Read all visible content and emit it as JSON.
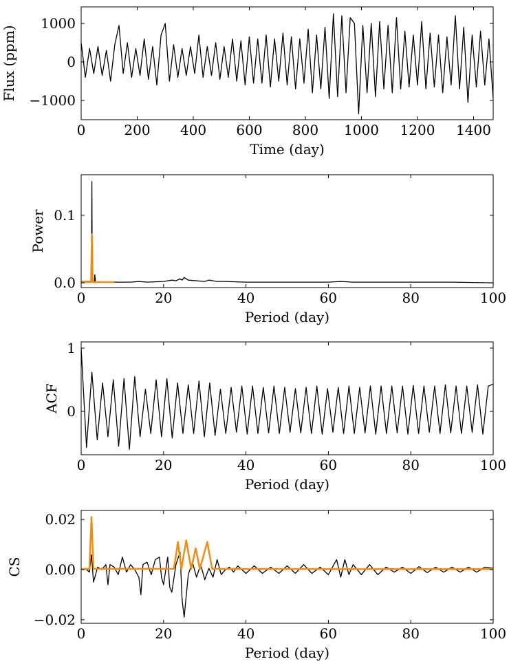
{
  "chart_data": [
    {
      "type": "line",
      "xlabel": "Time (day)",
      "ylabel": "Flux (ppm)",
      "xlim": [
        0,
        1470
      ],
      "ylim": [
        -1500,
        1430
      ],
      "xticks": [
        0,
        200,
        400,
        600,
        800,
        1000,
        1200,
        1400
      ],
      "yticks": [
        {
          "value": -1000,
          "label": "−1000"
        },
        0,
        1000
      ],
      "series": [
        {
          "color": "#000000",
          "x": [
            0,
            15,
            30,
            45,
            60,
            75,
            90,
            105,
            120,
            135,
            150,
            165,
            180,
            195,
            210,
            225,
            240,
            255,
            270,
            285,
            300,
            315,
            330,
            345,
            360,
            375,
            390,
            405,
            420,
            435,
            450,
            465,
            480,
            495,
            510,
            525,
            540,
            555,
            570,
            585,
            600,
            615,
            630,
            645,
            660,
            675,
            690,
            705,
            720,
            735,
            750,
            765,
            780,
            795,
            810,
            825,
            840,
            855,
            870,
            885,
            900,
            915,
            930,
            945,
            960,
            975,
            990,
            1005,
            1020,
            1035,
            1050,
            1065,
            1080,
            1095,
            1110,
            1125,
            1140,
            1155,
            1170,
            1185,
            1200,
            1215,
            1230,
            1245,
            1260,
            1275,
            1290,
            1305,
            1320,
            1335,
            1350,
            1365,
            1380,
            1395,
            1410,
            1425,
            1440,
            1455,
            1470
          ],
          "values": [
            500,
            -400,
            350,
            -300,
            400,
            -350,
            300,
            -500,
            450,
            950,
            -300,
            500,
            -400,
            350,
            -350,
            600,
            -450,
            400,
            -600,
            700,
            1000,
            -500,
            450,
            -400,
            350,
            -350,
            400,
            -300,
            700,
            -400,
            400,
            -350,
            500,
            -450,
            400,
            -400,
            600,
            -500,
            550,
            -600,
            650,
            -550,
            600,
            -550,
            700,
            -650,
            600,
            -500,
            750,
            -600,
            650,
            -700,
            600,
            -550,
            850,
            -800,
            700,
            -700,
            900,
            -950,
            1250,
            -900,
            1200,
            -800,
            1150,
            1000,
            -1350,
            950,
            -800,
            1000,
            -900,
            1050,
            -700,
            950,
            -800,
            1150,
            -700,
            800,
            -650,
            700,
            -600,
            1050,
            -700,
            750,
            -650,
            700,
            -800,
            650,
            -600,
            1200,
            -700,
            900,
            -1050,
            700,
            -650,
            800,
            -600,
            600,
            -950
          ]
        }
      ]
    },
    {
      "type": "line",
      "xlabel": "Period (day)",
      "ylabel": "Power",
      "xlim": [
        0,
        100
      ],
      "ylim": [
        -0.007,
        0.16
      ],
      "xticks": [
        0,
        20,
        40,
        60,
        80,
        100
      ],
      "yticks": [
        {
          "value": 0,
          "label": "0.0"
        },
        0.1
      ],
      "series": [
        {
          "color": "#000000",
          "x": [
            0,
            2.5,
            2.6,
            2.7,
            3.2,
            3.3,
            3.5,
            8,
            12,
            14,
            16,
            20,
            22,
            23,
            24,
            24.5,
            25,
            26,
            28,
            30,
            31,
            33,
            35,
            40,
            50,
            60,
            63,
            66,
            70,
            80,
            90,
            100
          ],
          "values": [
            0.002,
            0.002,
            0.15,
            0.002,
            0.002,
            0.012,
            0.001,
            0.001,
            0.001,
            0.002,
            0.001,
            0.002,
            0.004,
            0.003,
            0.006,
            0.004,
            0.008,
            0.004,
            0.003,
            0.002,
            0.004,
            0.002,
            0.002,
            0.001,
            0.001,
            0.001,
            0.002,
            0.001,
            0.001,
            0.001,
            0.001,
            0.0
          ]
        },
        {
          "color": "#f28c0f",
          "x": [
            0,
            2.4,
            2.6,
            2.8,
            8
          ],
          "values": [
            0.001,
            0.001,
            0.072,
            0.001,
            0.001
          ]
        }
      ]
    },
    {
      "type": "line",
      "xlabel": "Period (day)",
      "ylabel": "ACF",
      "xlim": [
        0,
        100
      ],
      "ylim": [
        -0.685,
        1.098
      ],
      "xticks": [
        0,
        20,
        40,
        60,
        80,
        100
      ],
      "yticks": [
        0,
        1
      ],
      "series": [
        {
          "color": "#000000",
          "x": [
            0,
            1.3,
            2.6,
            3.9,
            5.2,
            6.5,
            7.8,
            9.1,
            10.4,
            11.7,
            13,
            14.3,
            15.6,
            16.9,
            18.2,
            19.5,
            20.8,
            22.1,
            23.4,
            24.7,
            26,
            27.3,
            28.6,
            29.9,
            31.2,
            32.5,
            33.8,
            35.1,
            36.4,
            37.7,
            39,
            40.3,
            41.6,
            42.9,
            44.2,
            45.5,
            46.8,
            48.1,
            49.4,
            50.7,
            52,
            53.3,
            54.6,
            55.9,
            57.2,
            58.5,
            59.8,
            61.1,
            62.4,
            63.7,
            65,
            66.3,
            67.6,
            68.9,
            70.2,
            71.5,
            72.8,
            74.1,
            75.4,
            76.7,
            78,
            79.3,
            80.6,
            81.9,
            83.2,
            84.5,
            85.8,
            87.1,
            88.4,
            89.7,
            91,
            92.3,
            93.6,
            94.9,
            96.2,
            97.5,
            98.8,
            100
          ],
          "values": [
            1.0,
            -0.57,
            0.62,
            -0.45,
            0.45,
            -0.4,
            0.5,
            -0.55,
            0.52,
            -0.6,
            0.55,
            -0.4,
            0.35,
            -0.35,
            0.5,
            -0.4,
            0.52,
            -0.42,
            0.45,
            -0.35,
            0.42,
            -0.35,
            0.48,
            -0.4,
            0.45,
            -0.38,
            0.35,
            -0.35,
            0.38,
            -0.33,
            0.4,
            -0.36,
            0.4,
            -0.35,
            0.38,
            -0.34,
            0.4,
            -0.35,
            0.38,
            -0.33,
            0.36,
            -0.34,
            0.38,
            -0.35,
            0.4,
            -0.36,
            0.36,
            -0.33,
            0.38,
            -0.35,
            0.4,
            -0.35,
            0.38,
            -0.34,
            0.4,
            -0.36,
            0.4,
            -0.35,
            0.4,
            -0.34,
            0.4,
            -0.36,
            0.41,
            -0.35,
            0.4,
            -0.33,
            0.4,
            -0.35,
            0.42,
            -0.34,
            0.4,
            -0.35,
            0.4,
            -0.33,
            0.42,
            -0.36,
            0.4,
            0.43
          ]
        }
      ]
    },
    {
      "type": "line",
      "xlabel": "Period (day)",
      "ylabel": "CS",
      "xlim": [
        0,
        100
      ],
      "ylim": [
        -0.0214,
        0.0236
      ],
      "xticks": [
        0,
        20,
        40,
        60,
        80,
        100
      ],
      "yticks": [
        {
          "value": -0.02,
          "label": "−0.02"
        },
        {
          "value": 0,
          "label": "0.00"
        },
        {
          "value": 0.02,
          "label": "0.02"
        }
      ],
      "series": [
        {
          "color": "#000000",
          "x": [
            0,
            1,
            2,
            2.5,
            3,
            4,
            5,
            6,
            6.5,
            7,
            8,
            9,
            10,
            11,
            12,
            13,
            14,
            14.5,
            15,
            16,
            17,
            18,
            19,
            19.5,
            20,
            21,
            21.5,
            22,
            23,
            24,
            24.5,
            25,
            26,
            27,
            28,
            29,
            30,
            31,
            32,
            33,
            34,
            35,
            36,
            37,
            38,
            40,
            42,
            44,
            46,
            48,
            50,
            52,
            54,
            56,
            58,
            60,
            62,
            63,
            64,
            65,
            66,
            68,
            70,
            72,
            74,
            76,
            78,
            80,
            82,
            84,
            86,
            88,
            90,
            92,
            94,
            96,
            98,
            100
          ],
          "values": [
            0,
            0.0005,
            -0.001,
            0.006,
            -0.005,
            0.001,
            0,
            0.002,
            -0.006,
            0.002,
            0.001,
            -0.002,
            0.005,
            -0.001,
            0.002,
            0,
            -0.003,
            -0.01,
            0.002,
            0.003,
            -0.002,
            0.004,
            0.005,
            -0.003,
            -0.006,
            0.005,
            -0.007,
            -0.009,
            0.002,
            0.007,
            -0.012,
            -0.019,
            -0.002,
            0.003,
            -0.003,
            0.002,
            -0.004,
            0.0005,
            -0.003,
            0.004,
            -0.002,
            0,
            0.001,
            -0.001,
            0.0015,
            -0.0015,
            0.0015,
            -0.0015,
            0.001,
            -0.0015,
            0.0015,
            -0.0015,
            0.002,
            -0.0015,
            0.001,
            -0.002,
            0.004,
            -0.003,
            0.004,
            -0.002,
            0.002,
            -0.002,
            0.002,
            -0.002,
            0.001,
            -0.001,
            0.001,
            -0.0015,
            0.0012,
            -0.0012,
            0.001,
            -0.001,
            0.001,
            -0.001,
            0.001,
            -0.001,
            0.001,
            0.0005
          ]
        },
        {
          "color": "#f28c0f",
          "x": [
            0,
            2,
            2.5,
            3,
            22.5,
            23.5,
            24.3,
            25.5,
            26.7,
            27.8,
            28.8,
            30.6,
            31.8,
            100
          ],
          "values": [
            0.0002,
            0.0003,
            0.021,
            0.0003,
            0.0003,
            0.011,
            0.0003,
            0.0117,
            0.0003,
            0.0085,
            0.0003,
            0.011,
            0.0003,
            0.0002
          ]
        }
      ]
    }
  ]
}
